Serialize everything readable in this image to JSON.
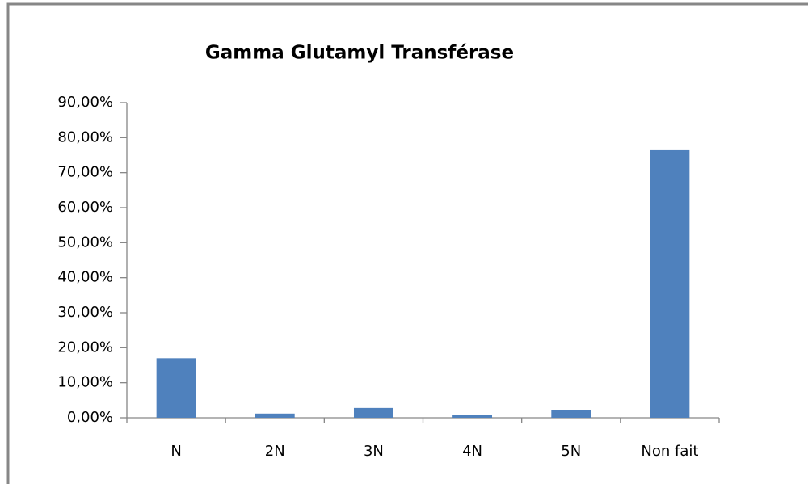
{
  "chart_data": {
    "type": "bar",
    "title": "Gamma Glutamyl Transférase",
    "categories": [
      "N",
      "2N",
      "3N",
      "4N",
      "5N",
      "Non fait"
    ],
    "values": [
      17,
      1.2,
      2.8,
      0.7,
      2.1,
      76.4
    ],
    "color": "#4f81bd",
    "ylim": [
      0,
      90
    ],
    "yticks": [
      {
        "value": 0,
        "label": "0,00%"
      },
      {
        "value": 10,
        "label": "10,00%"
      },
      {
        "value": 20,
        "label": "20,00%"
      },
      {
        "value": 30,
        "label": "30,00%"
      },
      {
        "value": 40,
        "label": "40,00%"
      },
      {
        "value": 50,
        "label": "50,00%"
      },
      {
        "value": 60,
        "label": "60,00%"
      },
      {
        "value": 70,
        "label": "70,00%"
      },
      {
        "value": 80,
        "label": "80,00%"
      },
      {
        "value": 90,
        "label": "90,00%"
      }
    ],
    "grid": false
  }
}
